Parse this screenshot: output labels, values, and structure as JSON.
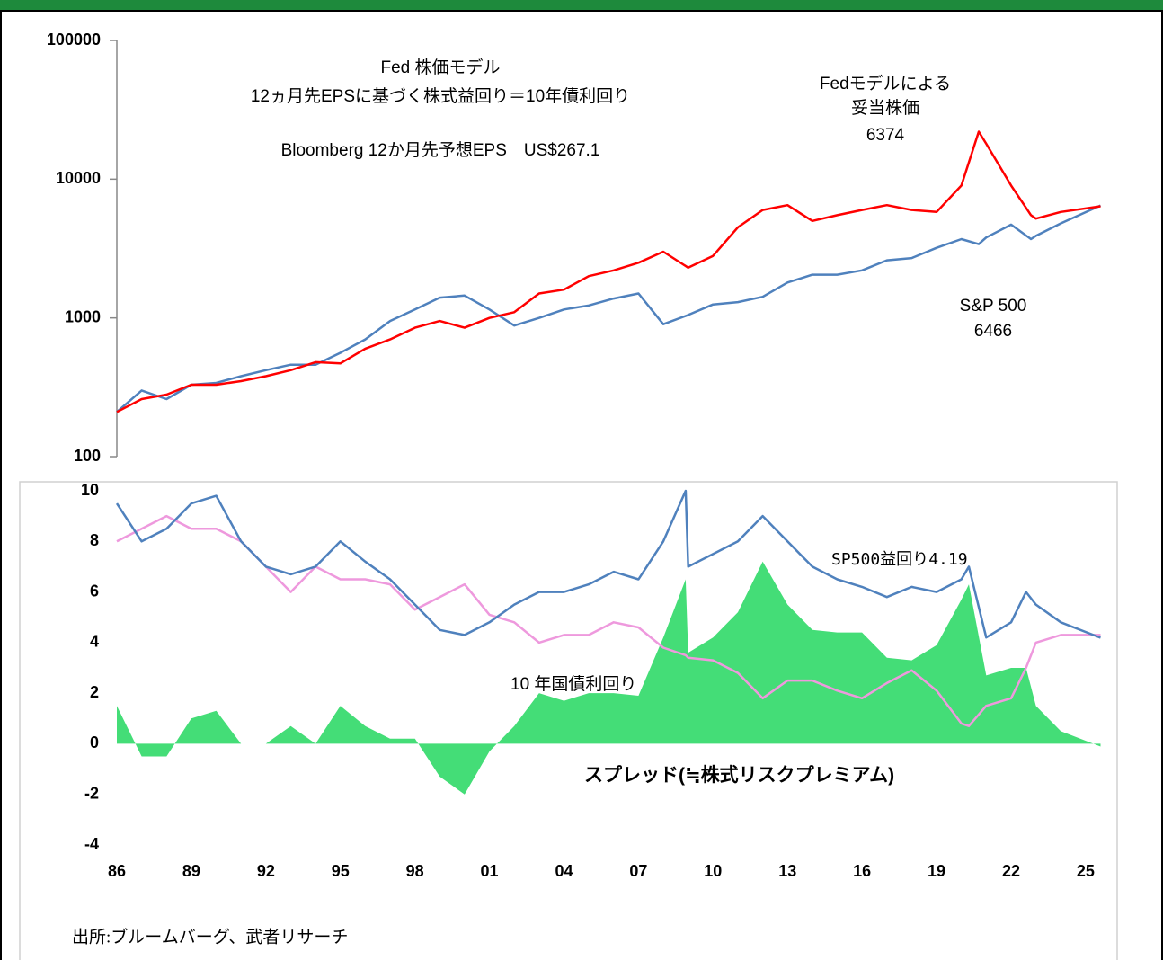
{
  "chart_data": [
    {
      "type": "line",
      "log": true,
      "annotations": [
        "Fed 株価モデル",
        "12ヵ月先EPSに基づく株式益回り＝10年債利回り",
        "Bloomberg 12か月先予想EPS　US$267.1"
      ],
      "xlim": [
        1986,
        2025.8
      ],
      "ylim": [
        100,
        100000
      ],
      "yticks": [
        100,
        1000,
        10000,
        100000
      ],
      "x": [
        1986,
        1987,
        1988,
        1989,
        1990,
        1991,
        1992,
        1993,
        1994,
        1995,
        1996,
        1997,
        1998,
        1999,
        2000,
        2001,
        2002,
        2003,
        2004,
        2005,
        2006,
        2007,
        2008,
        2009,
        2010,
        2011,
        2012,
        2013,
        2014,
        2015,
        2016,
        2017,
        2018,
        2019,
        2020,
        2020.7,
        2021,
        2022,
        2022.8,
        2023,
        2024,
        2025.6
      ],
      "series": [
        {
          "name": "S&P 500",
          "color": "#4f81bd",
          "values": [
            210,
            300,
            260,
            330,
            340,
            380,
            420,
            460,
            460,
            560,
            700,
            950,
            1150,
            1400,
            1450,
            1150,
            880,
            1000,
            1150,
            1230,
            1380,
            1500,
            900,
            1050,
            1250,
            1300,
            1420,
            1800,
            2050,
            2050,
            2200,
            2600,
            2700,
            3200,
            3700,
            3400,
            3800,
            4700,
            3700,
            3900,
            4800,
            6466
          ]
        },
        {
          "name": "Fedモデルによる妥当株価",
          "color": "#ff0000",
          "values": [
            210,
            260,
            280,
            330,
            330,
            350,
            380,
            420,
            480,
            470,
            600,
            700,
            850,
            950,
            850,
            1000,
            1100,
            1500,
            1600,
            2000,
            2200,
            2500,
            3000,
            2300,
            2800,
            4500,
            6000,
            6500,
            5000,
            5500,
            6000,
            6500,
            6000,
            5800,
            9000,
            22000,
            18000,
            9000,
            5500,
            5200,
            5800,
            6374
          ]
        }
      ]
    },
    {
      "type": "line",
      "xlim": [
        1986,
        2025.8
      ],
      "ylim": [
        -4,
        10
      ],
      "yticks": [
        -4,
        -2,
        0,
        2,
        4,
        6,
        8,
        10
      ],
      "xticks": [
        {
          "value": 1986,
          "label": "86"
        },
        {
          "value": 1989,
          "label": "89"
        },
        {
          "value": 1992,
          "label": "92"
        },
        {
          "value": 1995,
          "label": "95"
        },
        {
          "value": 1998,
          "label": "98"
        },
        {
          "value": 2001,
          "label": "01"
        },
        {
          "value": 2004,
          "label": "04"
        },
        {
          "value": 2007,
          "label": "07"
        },
        {
          "value": 2010,
          "label": "10"
        },
        {
          "value": 2013,
          "label": "13"
        },
        {
          "value": 2016,
          "label": "16"
        },
        {
          "value": 2019,
          "label": "19"
        },
        {
          "value": 2022,
          "label": "22"
        },
        {
          "value": 2025,
          "label": "25"
        }
      ],
      "x": [
        1986,
        1987,
        1988,
        1989,
        1990,
        1991,
        1992,
        1993,
        1994,
        1995,
        1996,
        1997,
        1998,
        1999,
        2000,
        2001,
        2002,
        2003,
        2004,
        2005,
        2006,
        2007,
        2008,
        2008.9,
        2009,
        2010,
        2011,
        2012,
        2013,
        2014,
        2015,
        2016,
        2017,
        2018,
        2019,
        2020,
        2020.3,
        2021,
        2022,
        2022.6,
        2023,
        2024,
        2025.6
      ],
      "series": [
        {
          "name": "スプレッド(≒株式リスクプレミアム)",
          "color": "#44dd77",
          "area": true,
          "values": [
            1.5,
            -0.5,
            -0.5,
            1,
            1.3,
            0,
            0,
            0.7,
            0,
            1.5,
            0.7,
            0.2,
            0.2,
            -1.3,
            -2,
            -0.3,
            0.7,
            2,
            1.7,
            2,
            2,
            1.9,
            4.2,
            6.5,
            3.6,
            4.2,
            5.2,
            7.2,
            5.5,
            4.5,
            4.4,
            4.4,
            3.4,
            3.3,
            3.9,
            5.7,
            6.3,
            2.7,
            3.0,
            3,
            1.5,
            0.5,
            -0.11
          ]
        },
        {
          "name": "10 年国債利回り",
          "color": "#ee99dd",
          "values": [
            8,
            8.5,
            9,
            8.5,
            8.5,
            8,
            7,
            6,
            7,
            6.5,
            6.5,
            6.3,
            5.3,
            5.8,
            6.3,
            5.1,
            4.8,
            4,
            4.3,
            4.3,
            4.8,
            4.6,
            3.8,
            3.5,
            3.4,
            3.3,
            2.8,
            1.8,
            2.5,
            2.5,
            2.1,
            1.8,
            2.4,
            2.9,
            2.1,
            0.8,
            0.7,
            1.5,
            1.8,
            3,
            4,
            4.3,
            4.3
          ]
        },
        {
          "name": "SP500益回り",
          "color": "#4f81bd",
          "values": [
            9.5,
            8,
            8.5,
            9.5,
            9.8,
            8,
            7,
            6.7,
            7,
            8,
            7.2,
            6.5,
            5.5,
            4.5,
            4.3,
            4.8,
            5.5,
            6,
            6,
            6.3,
            6.8,
            6.5,
            8,
            10,
            7,
            7.5,
            8,
            9,
            8,
            7,
            6.5,
            6.2,
            5.8,
            6.2,
            6,
            6.5,
            7,
            4.2,
            4.8,
            6,
            5.5,
            4.8,
            4.19
          ]
        }
      ]
    }
  ],
  "source": "出所:ブルームバーグ、武者リサーチ"
}
